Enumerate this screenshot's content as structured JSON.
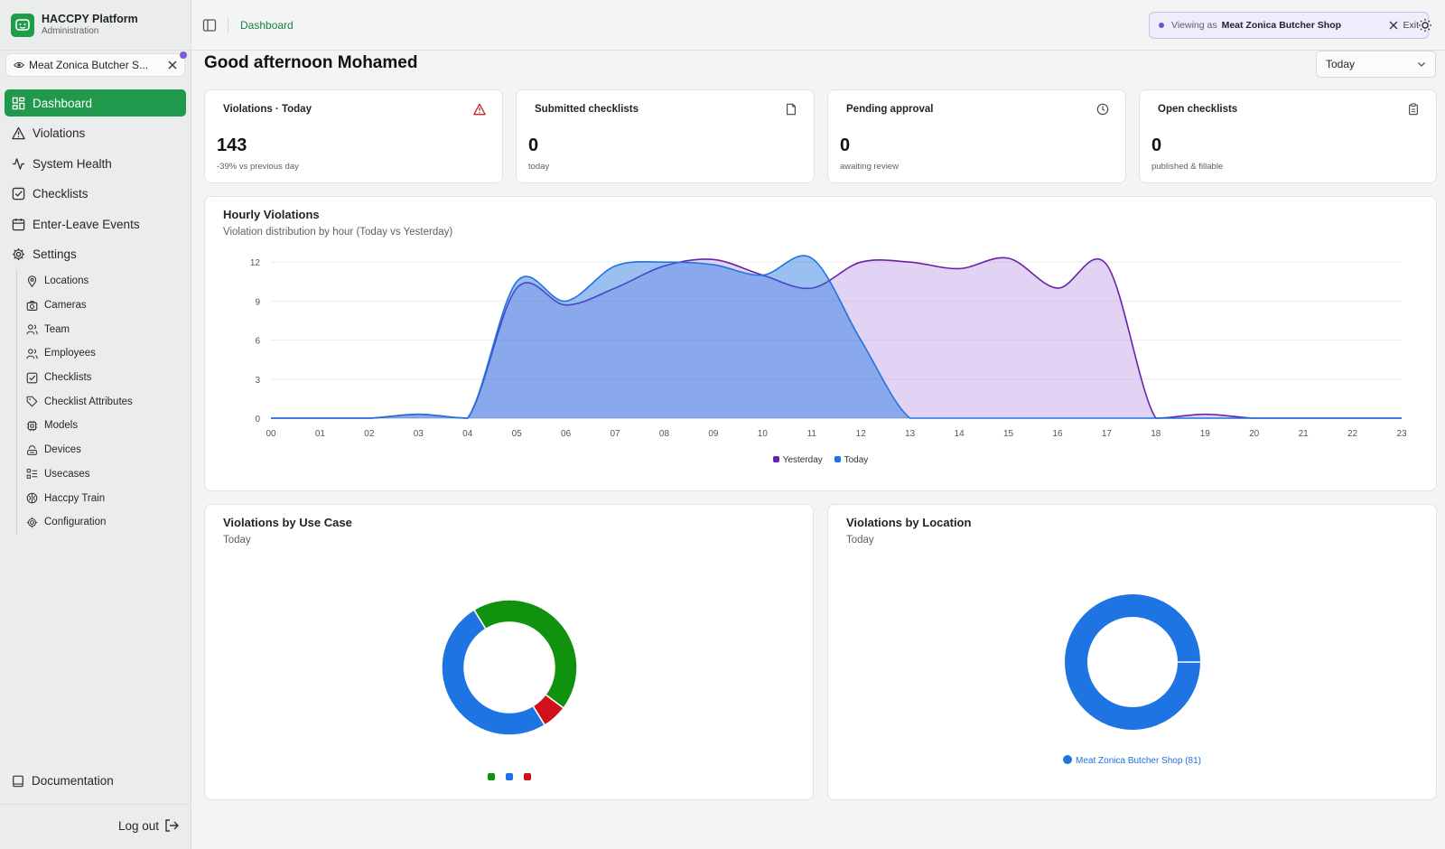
{
  "app": {
    "title": "HACCPY Platform",
    "subtitle": "Administration"
  },
  "viewing_chip": {
    "label": "Meat Zonica Butcher S..."
  },
  "nav": {
    "dashboard": "Dashboard",
    "violations": "Violations",
    "system_health": "System Health",
    "checklists": "Checklists",
    "enter_leave": "Enter-Leave Events",
    "settings": "Settings"
  },
  "settings_items": [
    "Locations",
    "Cameras",
    "Team",
    "Employees",
    "Checklists",
    "Checklist Attributes",
    "Models",
    "Devices",
    "Usecases",
    "Haccpy Train",
    "Configuration"
  ],
  "footer": {
    "documentation": "Documentation",
    "logout": "Log out"
  },
  "breadcrumb": "Dashboard",
  "viewing_banner": {
    "prefix": "Viewing as",
    "shop": "Meat Zonica Butcher Shop",
    "exit": "Exit"
  },
  "greeting": "Good afternoon Mohamed",
  "range": {
    "selected": "Today"
  },
  "stats": [
    {
      "title": "Violations · Today",
      "value": "143",
      "sub": "-39% vs previous day",
      "icon": "alert-triangle-icon"
    },
    {
      "title": "Submitted checklists",
      "value": "0",
      "sub": "today",
      "icon": "file-icon"
    },
    {
      "title": "Pending approval",
      "value": "0",
      "sub": "awaiting review",
      "icon": "clock-icon"
    },
    {
      "title": "Open checklists",
      "value": "0",
      "sub": "published & fillable",
      "icon": "clipboard-icon"
    }
  ],
  "colors": {
    "accent": "#21994d",
    "yesterday": "#6b21a8",
    "today": "#1e74e2",
    "uc_green": "#11920f",
    "uc_blue": "#1e74e2",
    "uc_red": "#d0111b"
  },
  "chart_data": [
    {
      "type": "area",
      "title": "Hourly Violations",
      "subtitle": "Violation distribution by hour (Today vs Yesterday)",
      "x": [
        "00",
        "01",
        "02",
        "03",
        "04",
        "05",
        "06",
        "07",
        "08",
        "09",
        "10",
        "11",
        "12",
        "13",
        "14",
        "15",
        "16",
        "17",
        "18",
        "19",
        "20",
        "21",
        "22",
        "23"
      ],
      "series": [
        {
          "name": "Yesterday",
          "values": [
            0,
            0,
            0,
            0.3,
            0,
            10,
            8.7,
            10,
            11.7,
            12.2,
            11,
            10,
            12,
            12,
            11.5,
            12.3,
            10,
            11.8,
            0,
            0.3,
            0,
            0,
            0,
            0
          ]
        },
        {
          "name": "Today",
          "values": [
            0,
            0,
            0,
            0.3,
            0,
            10.5,
            9,
            11.7,
            12,
            11.8,
            11,
            12.3,
            6,
            0,
            0,
            0,
            0,
            0,
            0,
            0,
            0,
            0,
            0,
            0
          ]
        }
      ],
      "yticks": [
        0,
        3,
        6,
        9,
        12
      ],
      "ylim": [
        0,
        12.5
      ],
      "grid": true,
      "legend": "bottom"
    },
    {
      "type": "pie",
      "title": "Violations by Use Case",
      "subtitle": "Today",
      "slices": [
        {
          "color": "#11920f",
          "value": 0.44
        },
        {
          "color": "#d0111b",
          "value": 0.06
        },
        {
          "color": "#1e74e2",
          "value": 0.5
        }
      ],
      "legend": "bottom"
    },
    {
      "type": "pie",
      "title": "Violations by Location",
      "subtitle": "Today",
      "slices": [
        {
          "name": "Meat Zonica Butcher Shop (81)",
          "color": "#1e74e2",
          "value": 1.0
        }
      ],
      "legend": "bottom"
    }
  ]
}
